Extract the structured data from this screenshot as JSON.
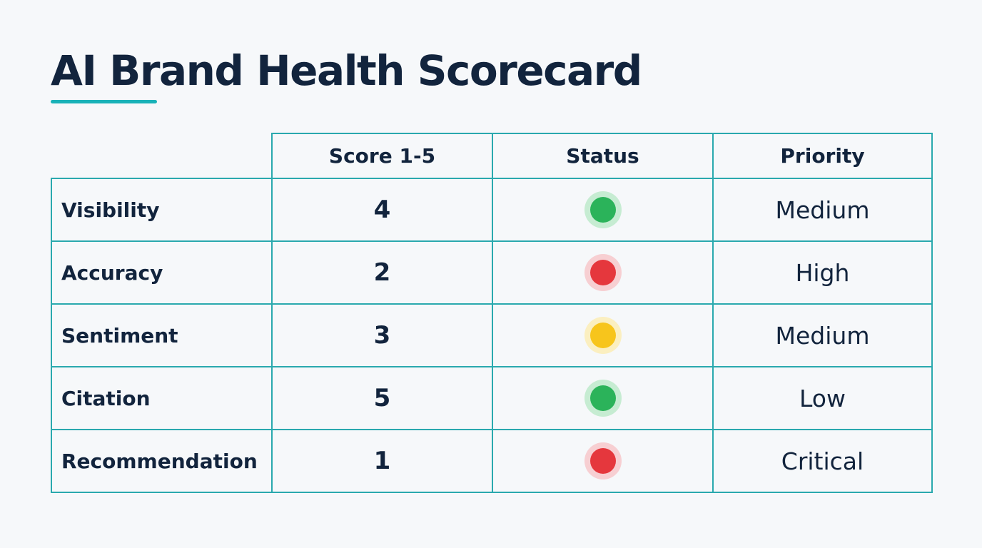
{
  "title": "AI Brand Health Scorecard",
  "colors": {
    "accent": "#19b2b8",
    "border": "#2aa9ae",
    "text": "#12243d",
    "status": {
      "green": {
        "core": "#2bb35a",
        "halo": "#c6ecd2"
      },
      "red": {
        "core": "#e5373d",
        "halo": "#f7cfd2"
      },
      "yellow": {
        "core": "#f7c51c",
        "halo": "#fbefc0"
      }
    }
  },
  "table": {
    "headers": [
      "",
      "Score 1-5",
      "Status",
      "Priority"
    ],
    "rows": [
      {
        "metric": "Visibility",
        "score": "4",
        "status": "green",
        "priority": "Medium"
      },
      {
        "metric": "Accuracy",
        "score": "2",
        "status": "red",
        "priority": "High"
      },
      {
        "metric": "Sentiment",
        "score": "3",
        "status": "yellow",
        "priority": "Medium"
      },
      {
        "metric": "Citation",
        "score": "5",
        "status": "green",
        "priority": "Low"
      },
      {
        "metric": "Recommendation",
        "score": "1",
        "status": "red",
        "priority": "Critical"
      }
    ]
  }
}
